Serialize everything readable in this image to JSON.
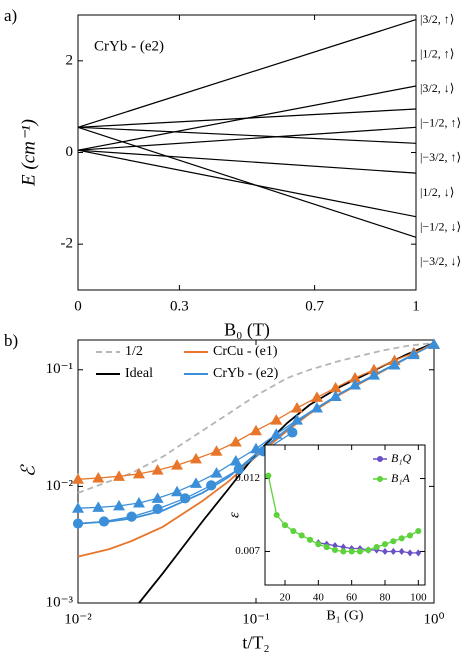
{
  "chart_data": [
    {
      "type": "line",
      "panel_label": "a)",
      "annotation": "CrYb - (e2)",
      "xlabel": "B₀ (T)",
      "ylabel": "E (cm⁻¹)",
      "x": [
        0,
        1
      ],
      "xlim": [
        0,
        1
      ],
      "ylim": [
        -3,
        3
      ],
      "xticks": [
        0,
        0.3,
        0.7,
        1
      ],
      "yticks": [
        -2,
        0,
        2
      ],
      "legend_position": "right",
      "series": [
        {
          "name": "|3/2, ↑⟩",
          "color": "#000000",
          "values": [
            0.55,
            2.9
          ]
        },
        {
          "name": "|1/2, ↑⟩",
          "color": "#000000",
          "values": [
            0.05,
            1.45
          ]
        },
        {
          "name": "|3/2, ↓⟩",
          "color": "#000000",
          "values": [
            0.55,
            0.95
          ]
        },
        {
          "name": "|−1/2, ↑⟩",
          "color": "#000000",
          "values": [
            0.05,
            0.55
          ]
        },
        {
          "name": "|−3/2, ↑⟩",
          "color": "#000000",
          "values": [
            0.55,
            0.2
          ]
        },
        {
          "name": "|1/2, ↓⟩",
          "color": "#000000",
          "values": [
            0.05,
            -0.45
          ]
        },
        {
          "name": "|−1/2, ↓⟩",
          "color": "#000000",
          "values": [
            0.05,
            -1.4
          ]
        },
        {
          "name": "|−3/2, ↓⟩",
          "color": "#000000",
          "values": [
            0.55,
            -1.85
          ]
        }
      ]
    },
    {
      "type": "line",
      "panel_label": "b)",
      "xlabel": "t/T₂",
      "ylabel": "ℰ",
      "xscale": "log",
      "yscale": "log",
      "xlim": [
        0.01,
        1
      ],
      "ylim": [
        0.001,
        0.18
      ],
      "xticks": [
        {
          "value": 0.01,
          "label": "10⁻²"
        },
        {
          "value": 0.1,
          "label": "10⁻¹"
        },
        {
          "value": 1,
          "label": "10⁰"
        }
      ],
      "yticks": [
        {
          "value": 0.001,
          "label": "10⁻³"
        },
        {
          "value": 0.01,
          "label": "10⁻²"
        },
        {
          "value": 0.1,
          "label": "10⁻¹"
        }
      ],
      "legend_position": "upper left",
      "series": [
        {
          "name": "1/2",
          "color": "#b5b5b5",
          "dash": true,
          "x": [
            0.01,
            0.02,
            0.03,
            0.05,
            0.07,
            0.1,
            0.15,
            0.2,
            0.3,
            0.5,
            0.7,
            1
          ],
          "values": [
            0.0088,
            0.013,
            0.018,
            0.03,
            0.042,
            0.06,
            0.085,
            0.1,
            0.12,
            0.145,
            0.16,
            0.17
          ]
        },
        {
          "name": "CrCu - (e1)",
          "color": "#e8762a",
          "x": [
            0.01,
            0.015,
            0.02,
            0.03,
            0.05,
            0.07,
            0.1,
            0.15,
            0.2,
            0.3,
            0.5,
            0.7,
            1
          ],
          "values": [
            0.0025,
            0.0029,
            0.0034,
            0.0045,
            0.0075,
            0.011,
            0.018,
            0.03,
            0.042,
            0.062,
            0.095,
            0.125,
            0.17
          ]
        },
        {
          "name": "Ideal",
          "color": "#000000",
          "x": [
            0.022,
            0.03,
            0.05,
            0.07,
            0.1,
            0.15,
            0.2,
            0.3,
            0.5,
            0.7,
            1
          ],
          "values": [
            0.001,
            0.0018,
            0.005,
            0.0095,
            0.019,
            0.035,
            0.05,
            0.072,
            0.105,
            0.135,
            0.17
          ]
        },
        {
          "name": "CrYb - (e2)",
          "color": "#3b8fd9",
          "x": [
            0.01,
            0.015,
            0.02,
            0.03,
            0.05,
            0.07,
            0.1,
            0.15,
            0.2,
            0.3,
            0.5,
            0.7,
            1
          ],
          "values": [
            0.0048,
            0.005,
            0.0053,
            0.0062,
            0.0088,
            0.012,
            0.019,
            0.031,
            0.043,
            0.063,
            0.096,
            0.126,
            0.17
          ]
        },
        {
          "color": "#e8762a",
          "marker": "triangle",
          "x": [
            0.01,
            0.013,
            0.017,
            0.022,
            0.028,
            0.036,
            0.046,
            0.06,
            0.077,
            0.1,
            0.13,
            0.17,
            0.22,
            0.28,
            0.36,
            0.46,
            0.6,
            0.77,
            1
          ],
          "values": [
            0.0115,
            0.0118,
            0.0122,
            0.0128,
            0.0138,
            0.0152,
            0.0172,
            0.02,
            0.024,
            0.03,
            0.037,
            0.047,
            0.058,
            0.07,
            0.085,
            0.1,
            0.12,
            0.14,
            0.165
          ]
        },
        {
          "color": "#3b8fd9",
          "marker": "triangle",
          "x": [
            0.01,
            0.013,
            0.017,
            0.022,
            0.028,
            0.036,
            0.046,
            0.06,
            0.077,
            0.1,
            0.13,
            0.17,
            0.22,
            0.28,
            0.36,
            0.46,
            0.6,
            0.77,
            1
          ],
          "values": [
            0.0065,
            0.0066,
            0.0068,
            0.0072,
            0.0079,
            0.009,
            0.0106,
            0.013,
            0.0165,
            0.021,
            0.028,
            0.037,
            0.047,
            0.059,
            0.074,
            0.09,
            0.11,
            0.135,
            0.165
          ]
        },
        {
          "color": "#3b8fd9",
          "marker": "circle",
          "x": [
            0.01,
            0.014,
            0.02,
            0.028,
            0.04,
            0.056,
            0.08,
            0.11,
            0.16
          ],
          "values": [
            0.0048,
            0.005,
            0.0055,
            0.0064,
            0.0079,
            0.0102,
            0.014,
            0.02,
            0.029
          ]
        }
      ]
    },
    {
      "type": "line",
      "xlabel": "B₁ (G)",
      "ylabel": "ε",
      "xlim": [
        8,
        104
      ],
      "ylim": [
        0.0047,
        0.0143
      ],
      "xticks": [
        20,
        40,
        60,
        80,
        100
      ],
      "yticks": [
        0.007,
        0.012
      ],
      "legend_position": "upper right",
      "series": [
        {
          "name": "B₁Q",
          "color": "#6a4fc7",
          "marker": "diamond",
          "x": [
            40,
            45,
            50,
            55,
            60,
            65,
            70,
            75,
            80,
            85,
            90,
            95,
            100
          ],
          "values": [
            0.0076,
            0.0075,
            0.0074,
            0.0073,
            0.0072,
            0.0072,
            0.0071,
            0.0071,
            0.007,
            0.007,
            0.007,
            0.0069,
            0.0069
          ]
        },
        {
          "name": "B₁A",
          "color": "#5ed23a",
          "marker": "circle",
          "x": [
            10,
            15,
            20,
            25,
            30,
            35,
            40,
            45,
            50,
            55,
            60,
            65,
            70,
            75,
            80,
            85,
            90,
            95,
            100
          ],
          "values": [
            0.0122,
            0.0095,
            0.0088,
            0.0084,
            0.0081,
            0.0078,
            0.0075,
            0.0073,
            0.0071,
            0.007,
            0.007,
            0.007,
            0.0071,
            0.0073,
            0.0075,
            0.0077,
            0.0079,
            0.0081,
            0.0084
          ]
        }
      ]
    }
  ]
}
